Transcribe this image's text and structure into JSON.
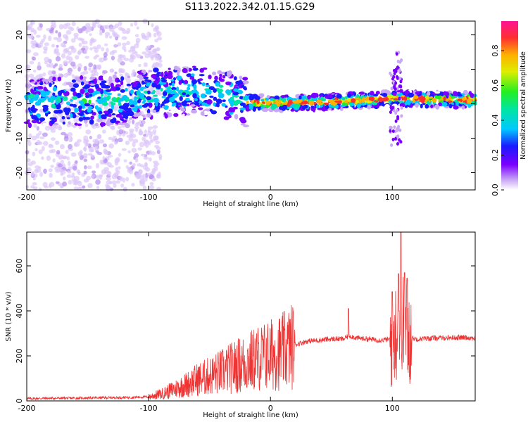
{
  "title": "S113.2022.342.01.15.G29",
  "chart_data": [
    {
      "type": "heatmap",
      "xlabel": "Height of straight line (km)",
      "ylabel": "Frequency (Hz)",
      "xlim": [
        -200,
        168
      ],
      "ylim": [
        -25,
        24
      ],
      "xticks": [
        -200,
        -100,
        0,
        100
      ],
      "yticks": [
        -20,
        -10,
        0,
        10,
        20
      ],
      "colorbar": {
        "label": "Normalized spectral amplitude",
        "range": [
          0,
          0.97
        ],
        "ticks": [
          0.0,
          0.2,
          0.4,
          0.6,
          0.8
        ]
      },
      "ridge": {
        "description_points": [
          {
            "x": -200,
            "y": 0.5
          },
          {
            "x": -120,
            "y": 1.0
          },
          {
            "x": -100,
            "y": 3.0
          },
          {
            "x": -60,
            "y": 4.0
          },
          {
            "x": -40,
            "y": 3.0
          },
          {
            "x": -20,
            "y": 0.5
          },
          {
            "x": 0,
            "y": 0.2
          },
          {
            "x": 50,
            "y": 0.5
          },
          {
            "x": 100,
            "y": 1.5
          },
          {
            "x": 168,
            "y": 1.0
          }
        ]
      }
    },
    {
      "type": "line",
      "xlabel": "Height of straight line (km)",
      "ylabel": "SNR (10 * v/v)",
      "xlim": [
        -200,
        168
      ],
      "ylim": [
        0,
        750
      ],
      "xticks": [
        -200,
        -100,
        0,
        100
      ],
      "yticks": [
        0,
        200,
        400,
        600
      ],
      "color": "#ee3333",
      "series": [
        {
          "x": [
            -200,
            -180,
            -160,
            -140,
            -120,
            -100,
            -95,
            -90,
            -80,
            -70,
            -60,
            -50,
            -40,
            -30,
            -20,
            -10,
            0,
            10,
            20,
            30,
            40,
            50,
            60,
            65,
            70,
            80,
            90,
            100,
            105,
            108,
            110,
            115,
            120,
            140,
            160,
            168
          ],
          "y": [
            10,
            12,
            12,
            14,
            15,
            18,
            25,
            30,
            50,
            70,
            95,
            110,
            130,
            150,
            170,
            190,
            205,
            220,
            250,
            265,
            270,
            275,
            275,
            290,
            280,
            275,
            270,
            275,
            330,
            360,
            300,
            280,
            275,
            280,
            282,
            278
          ]
        }
      ],
      "spikes": [
        {
          "x": 64,
          "y": 410
        },
        {
          "x": 100,
          "y": 485
        },
        {
          "x": 105,
          "y": 565
        },
        {
          "x": 107,
          "y": 750
        },
        {
          "x": 110,
          "y": 570
        },
        {
          "x": 112,
          "y": 545
        }
      ]
    }
  ]
}
